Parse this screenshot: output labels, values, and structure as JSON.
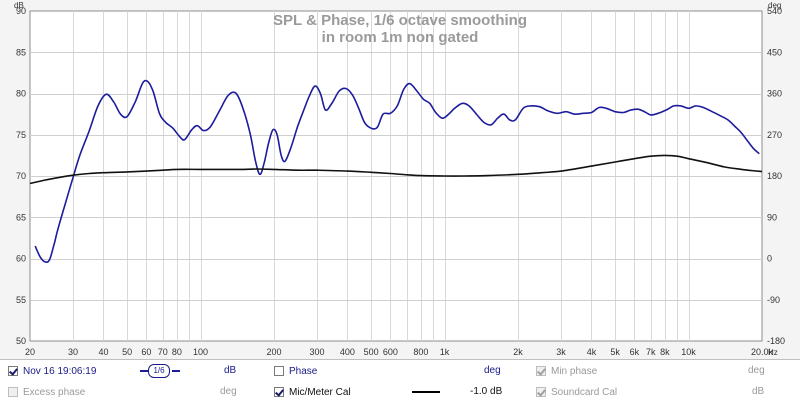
{
  "chart_data": {
    "type": "line",
    "title": "SPL & Phase, 1/6 octave smoothing",
    "subtitle": "in room 1m non gated",
    "left_axis_unit": "dB",
    "right_axis_unit": "deg",
    "x_axis_unit": "Hz",
    "x_scale": "log",
    "xlim": [
      20,
      20000
    ],
    "ylim": [
      50,
      90
    ],
    "y2lim": [
      -180,
      540
    ],
    "y_ticks": [
      "90",
      "85",
      "80",
      "75",
      "70",
      "65",
      "60",
      "55",
      "50"
    ],
    "y2_ticks": [
      "540",
      "450",
      "360",
      "270",
      "180",
      "90",
      "0",
      "-90",
      "-180"
    ],
    "y_tick_values": [
      90,
      85,
      80,
      75,
      70,
      65,
      60,
      55,
      50
    ],
    "y2_tick_values": [
      540,
      450,
      360,
      270,
      180,
      90,
      0,
      -90,
      -180
    ],
    "x_ticks": [
      {
        "f": 20,
        "label": "20"
      },
      {
        "f": 30,
        "label": "30"
      },
      {
        "f": 40,
        "label": "40"
      },
      {
        "f": 50,
        "label": "50"
      },
      {
        "f": 60,
        "label": "60"
      },
      {
        "f": 70,
        "label": "70"
      },
      {
        "f": 80,
        "label": "80"
      },
      {
        "f": 100,
        "label": "100"
      },
      {
        "f": 200,
        "label": "200"
      },
      {
        "f": 300,
        "label": "300"
      },
      {
        "f": 400,
        "label": "400"
      },
      {
        "f": 500,
        "label": "500"
      },
      {
        "f": 600,
        "label": "600"
      },
      {
        "f": 800,
        "label": "800"
      },
      {
        "f": 1000,
        "label": "1k"
      },
      {
        "f": 2000,
        "label": "2k"
      },
      {
        "f": 3000,
        "label": "3k"
      },
      {
        "f": 4000,
        "label": "4k"
      },
      {
        "f": 5000,
        "label": "5k"
      },
      {
        "f": 6000,
        "label": "6k"
      },
      {
        "f": 7000,
        "label": "7k"
      },
      {
        "f": 8000,
        "label": "8k"
      },
      {
        "f": 10000,
        "label": "10k"
      },
      {
        "f": 20000,
        "label": "20.0k"
      }
    ],
    "x_grid": [
      20,
      30,
      40,
      50,
      60,
      70,
      80,
      90,
      100,
      200,
      300,
      400,
      500,
      600,
      700,
      800,
      900,
      1000,
      2000,
      3000,
      4000,
      5000,
      6000,
      7000,
      8000,
      9000,
      10000,
      20000
    ],
    "series": [
      {
        "color": "#1c1c9c",
        "points": [
          [
            21,
            61.5
          ],
          [
            22,
            60.2
          ],
          [
            23,
            59.6
          ],
          [
            24,
            59.8
          ],
          [
            25,
            61.5
          ],
          [
            26,
            63.5
          ],
          [
            28,
            66.8
          ],
          [
            30,
            69.8
          ],
          [
            32,
            72.5
          ],
          [
            35,
            75.5
          ],
          [
            38,
            78.5
          ],
          [
            41,
            79.9
          ],
          [
            44,
            79.0
          ],
          [
            47,
            77.5
          ],
          [
            50,
            77.2
          ],
          [
            54,
            79.0
          ],
          [
            58,
            81.3
          ],
          [
            61,
            81.4
          ],
          [
            64,
            80.2
          ],
          [
            68,
            77.5
          ],
          [
            72,
            76.5
          ],
          [
            77,
            75.8
          ],
          [
            82,
            74.8
          ],
          [
            86,
            74.4
          ],
          [
            92,
            75.6
          ],
          [
            97,
            76.1
          ],
          [
            103,
            75.5
          ],
          [
            110,
            76.0
          ],
          [
            120,
            78.0
          ],
          [
            130,
            79.8
          ],
          [
            140,
            80.0
          ],
          [
            150,
            78.0
          ],
          [
            160,
            75.0
          ],
          [
            168,
            71.8
          ],
          [
            175,
            70.2
          ],
          [
            182,
            71.5
          ],
          [
            190,
            74.0
          ],
          [
            198,
            75.6
          ],
          [
            206,
            75.0
          ],
          [
            214,
            72.5
          ],
          [
            222,
            71.8
          ],
          [
            235,
            73.5
          ],
          [
            250,
            76.0
          ],
          [
            265,
            78.0
          ],
          [
            280,
            79.8
          ],
          [
            295,
            80.9
          ],
          [
            310,
            80.0
          ],
          [
            325,
            78.0
          ],
          [
            345,
            78.8
          ],
          [
            370,
            80.3
          ],
          [
            395,
            80.6
          ],
          [
            420,
            79.8
          ],
          [
            445,
            78.2
          ],
          [
            470,
            76.5
          ],
          [
            500,
            75.8
          ],
          [
            530,
            75.9
          ],
          [
            560,
            77.5
          ],
          [
            600,
            77.6
          ],
          [
            640,
            78.5
          ],
          [
            680,
            80.5
          ],
          [
            720,
            81.2
          ],
          [
            770,
            80.3
          ],
          [
            820,
            79.3
          ],
          [
            870,
            78.8
          ],
          [
            920,
            77.7
          ],
          [
            980,
            77.0
          ],
          [
            1040,
            77.5
          ],
          [
            1100,
            78.2
          ],
          [
            1180,
            78.8
          ],
          [
            1260,
            78.5
          ],
          [
            1350,
            77.5
          ],
          [
            1450,
            76.5
          ],
          [
            1550,
            76.2
          ],
          [
            1650,
            77.0
          ],
          [
            1750,
            77.5
          ],
          [
            1850,
            76.8
          ],
          [
            1950,
            76.8
          ],
          [
            2100,
            78.2
          ],
          [
            2250,
            78.5
          ],
          [
            2450,
            78.4
          ],
          [
            2650,
            77.9
          ],
          [
            2900,
            77.6
          ],
          [
            3150,
            77.8
          ],
          [
            3400,
            77.5
          ],
          [
            3700,
            77.6
          ],
          [
            4000,
            77.7
          ],
          [
            4300,
            78.3
          ],
          [
            4600,
            78.2
          ],
          [
            5000,
            77.8
          ],
          [
            5400,
            77.7
          ],
          [
            5800,
            78.0
          ],
          [
            6200,
            78.1
          ],
          [
            6600,
            77.8
          ],
          [
            7000,
            77.4
          ],
          [
            7500,
            77.6
          ],
          [
            8100,
            78.0
          ],
          [
            8700,
            78.5
          ],
          [
            9300,
            78.5
          ],
          [
            10000,
            78.2
          ],
          [
            10700,
            78.5
          ],
          [
            11500,
            78.3
          ],
          [
            12500,
            77.8
          ],
          [
            13500,
            77.3
          ],
          [
            14500,
            76.8
          ],
          [
            15500,
            76.0
          ],
          [
            16500,
            75.2
          ],
          [
            17500,
            74.2
          ],
          [
            18500,
            73.3
          ],
          [
            19500,
            72.7
          ]
        ]
      },
      {
        "color": "#111111",
        "points": [
          [
            20,
            69.1
          ],
          [
            23,
            69.5
          ],
          [
            26,
            69.8
          ],
          [
            30,
            70.1
          ],
          [
            35,
            70.3
          ],
          [
            40,
            70.4
          ],
          [
            50,
            70.5
          ],
          [
            60,
            70.6
          ],
          [
            70,
            70.7
          ],
          [
            80,
            70.8
          ],
          [
            100,
            70.8
          ],
          [
            120,
            70.8
          ],
          [
            150,
            70.8
          ],
          [
            170,
            70.85
          ],
          [
            200,
            70.8
          ],
          [
            250,
            70.7
          ],
          [
            300,
            70.7
          ],
          [
            400,
            70.6
          ],
          [
            500,
            70.45
          ],
          [
            600,
            70.3
          ],
          [
            700,
            70.15
          ],
          [
            800,
            70.05
          ],
          [
            1000,
            70.0
          ],
          [
            1200,
            70.0
          ],
          [
            1500,
            70.05
          ],
          [
            2000,
            70.2
          ],
          [
            2500,
            70.4
          ],
          [
            3000,
            70.6
          ],
          [
            4000,
            71.2
          ],
          [
            5000,
            71.7
          ],
          [
            6000,
            72.1
          ],
          [
            7000,
            72.4
          ],
          [
            8000,
            72.5
          ],
          [
            9000,
            72.4
          ],
          [
            10000,
            72.1
          ],
          [
            12000,
            71.6
          ],
          [
            14000,
            71.1
          ],
          [
            16500,
            70.8
          ],
          [
            19000,
            70.6
          ],
          [
            20000,
            70.55
          ]
        ]
      }
    ]
  },
  "legend": {
    "row1": [
      {
        "id": "measurement",
        "label": "Nov 16 19:06:19",
        "checked": true,
        "disabled": false,
        "unit": "dB"
      },
      {
        "id": "phase",
        "label": "Phase",
        "checked": false,
        "disabled": false,
        "unit": "deg"
      },
      {
        "id": "min-phase",
        "label": "Min phase",
        "checked": true,
        "disabled": true,
        "unit": "deg"
      }
    ],
    "row2": [
      {
        "id": "excess-phase",
        "label": "Excess phase",
        "checked": false,
        "disabled": true,
        "unit": "deg"
      },
      {
        "id": "mic-meter-cal",
        "label": "Mic/Meter Cal",
        "checked": true,
        "disabled": false,
        "value": "-1.0 dB"
      },
      {
        "id": "soundcard-cal",
        "label": "Soundcard Cal",
        "checked": true,
        "disabled": true,
        "unit": "dB"
      }
    ],
    "smoothing_label": "1/6"
  }
}
